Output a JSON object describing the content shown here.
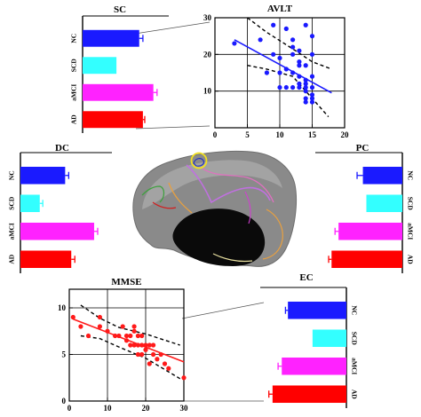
{
  "chart_data": [
    {
      "type": "bar",
      "title": "SC",
      "orientation": "horizontal",
      "categories": [
        "NC",
        "SCD",
        "aMCI",
        "AD"
      ],
      "values": [
        0.92,
        0.55,
        1.15,
        0.98
      ],
      "errors": [
        0.06,
        0.0,
        0.06,
        0.03
      ],
      "colors": [
        "#1a1aff",
        "#33ffff",
        "#ff22ff",
        "#ff0000"
      ],
      "xlim": [
        0,
        1.4
      ],
      "direction": "right"
    },
    {
      "type": "scatter",
      "title": "AVLT",
      "x": [
        3,
        7,
        8,
        9,
        9,
        10,
        10,
        10,
        11,
        11,
        11,
        12,
        12,
        12,
        12,
        12,
        13,
        13,
        13,
        13,
        13,
        13,
        14,
        14,
        14,
        14,
        14,
        14,
        14,
        14,
        15,
        15,
        15,
        15,
        15,
        15,
        15
      ],
      "y": [
        23,
        24,
        15,
        20,
        28,
        11,
        15,
        19,
        11,
        16,
        27,
        11,
        15,
        20,
        22,
        24,
        11,
        12,
        14,
        17,
        18,
        21,
        7,
        8,
        10,
        11,
        12,
        13,
        17,
        28,
        7,
        8,
        9,
        11,
        14,
        20,
        25
      ],
      "fit": [
        [
          3,
          24
        ],
        [
          18,
          9.5
        ]
      ],
      "ci_upper": [
        [
          5,
          30
        ],
        [
          8,
          26
        ],
        [
          12,
          21.5
        ],
        [
          15,
          18
        ],
        [
          18,
          16
        ]
      ],
      "ci_lower": [
        [
          5,
          17
        ],
        [
          8,
          16
        ],
        [
          12,
          14
        ],
        [
          15,
          8
        ],
        [
          17.5,
          3
        ]
      ],
      "xlim": [
        0,
        20
      ],
      "ylim": [
        0,
        30
      ],
      "xticks": [
        0,
        5,
        10,
        15,
        20
      ],
      "yticks": [
        10,
        20,
        30
      ],
      "grid": true,
      "point_color": "#1a1aff",
      "line_color": "#1a1aff"
    },
    {
      "type": "bar",
      "title": "DC",
      "orientation": "horizontal",
      "categories": [
        "NC",
        "SCD",
        "aMCI",
        "AD"
      ],
      "values": [
        0.88,
        0.38,
        1.45,
        1.0
      ],
      "errors": [
        0.07,
        0.06,
        0.07,
        0.07
      ],
      "colors": [
        "#1a1aff",
        "#33ffff",
        "#ff22ff",
        "#ff0000"
      ],
      "xlim": [
        0,
        1.8
      ],
      "direction": "right"
    },
    {
      "type": "bar",
      "title": "PC",
      "orientation": "horizontal",
      "categories": [
        "NC",
        "SCD",
        "aMCI",
        "AD"
      ],
      "values": [
        0.68,
        0.62,
        1.1,
        1.22
      ],
      "errors": [
        0.1,
        0.0,
        0.06,
        0.05
      ],
      "colors": [
        "#1a1aff",
        "#33ffff",
        "#ff22ff",
        "#ff0000"
      ],
      "xlim": [
        0,
        1.5
      ],
      "direction": "left"
    },
    {
      "type": "scatter",
      "title": "MMSE",
      "x": [
        1,
        3,
        5,
        8,
        8,
        10,
        12,
        13,
        14,
        15,
        15,
        16,
        16,
        17,
        17,
        17,
        18,
        18,
        18,
        19,
        19,
        19,
        20,
        20,
        21,
        21,
        22,
        22,
        23,
        24,
        25,
        26,
        30
      ],
      "y": [
        9,
        8,
        7,
        8,
        9,
        7.5,
        7,
        7,
        8,
        6.5,
        7,
        7,
        6,
        7.5,
        6,
        8,
        5,
        6,
        7,
        5,
        6,
        7,
        6,
        5.5,
        6,
        4,
        5,
        6,
        4.5,
        5,
        4,
        3.5,
        2.5
      ],
      "fit": [
        [
          1,
          8.8
        ],
        [
          30,
          4.2
        ]
      ],
      "ci_upper": [
        [
          3,
          10.3
        ],
        [
          8,
          8.9
        ],
        [
          13,
          7.9
        ],
        [
          20,
          7.2
        ],
        [
          29,
          6
        ]
      ],
      "ci_lower": [
        [
          3,
          7
        ],
        [
          8,
          6.7
        ],
        [
          13,
          5.8
        ],
        [
          20,
          4.6
        ],
        [
          29,
          2.4
        ]
      ],
      "xlim": [
        0,
        30
      ],
      "ylim": [
        0,
        12
      ],
      "xticks": [
        0,
        10,
        20,
        30
      ],
      "yticks": [
        0,
        5,
        10
      ],
      "grid": true,
      "point_color": "#ff1a1a",
      "line_color": "#ff1a1a"
    },
    {
      "type": "bar",
      "title": "EC",
      "orientation": "horizontal",
      "categories": [
        "NC",
        "SCD",
        "aMCI",
        "AD"
      ],
      "values": [
        0.95,
        0.55,
        1.05,
        1.2
      ],
      "errors": [
        0.04,
        0.0,
        0.06,
        0.06
      ],
      "colors": [
        "#1a1aff",
        "#33ffff",
        "#ff22ff",
        "#ff0000"
      ],
      "xlim": [
        0,
        1.4
      ],
      "direction": "left"
    }
  ]
}
